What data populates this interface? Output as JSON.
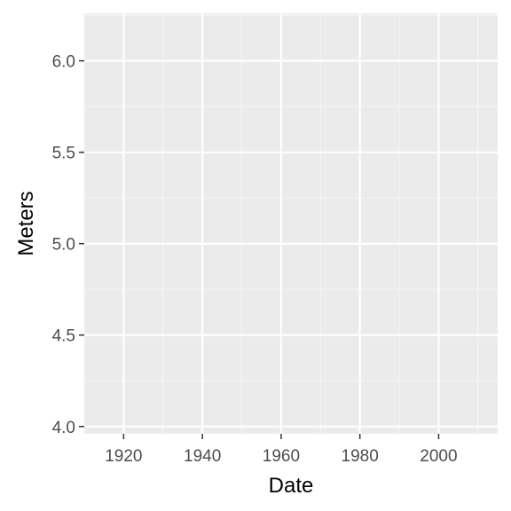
{
  "chart_data": {
    "type": "line",
    "title": "",
    "xlabel": "Date",
    "ylabel": "Meters",
    "x_axis": {
      "type": "date",
      "range": [
        "1910-01-01",
        "2015-01-01"
      ],
      "major_ticks": [
        1920,
        1940,
        1960,
        1980,
        2000
      ],
      "tick_labels": [
        "1920",
        "1940",
        "1960",
        "1980",
        "2000"
      ]
    },
    "y_axis": {
      "range": [
        3.96,
        6.26
      ],
      "major_ticks": [
        4.0,
        4.5,
        5.0,
        5.5,
        6.0
      ],
      "tick_labels": [
        "4.0",
        "4.5",
        "5.0",
        "5.5",
        "6.0"
      ]
    },
    "grid": true,
    "legend": "none",
    "series": [],
    "colors": {
      "panel_background": "#ebebeb",
      "grid_major": "#ffffff",
      "grid_minor": "#f5f5f5",
      "tick_mark": "#333333",
      "tick_label": "#4d4d4d",
      "axis_title": "#000000"
    }
  }
}
